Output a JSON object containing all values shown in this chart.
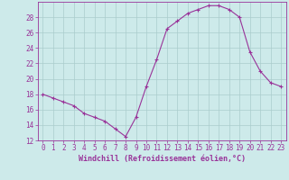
{
  "x": [
    0,
    1,
    2,
    3,
    4,
    5,
    6,
    7,
    8,
    9,
    10,
    11,
    12,
    13,
    14,
    15,
    16,
    17,
    18,
    19,
    20,
    21,
    22,
    23
  ],
  "y": [
    18.0,
    17.5,
    17.0,
    16.5,
    15.5,
    15.0,
    14.5,
    13.5,
    12.5,
    15.0,
    19.0,
    22.5,
    26.5,
    27.5,
    28.5,
    29.0,
    29.5,
    29.5,
    29.0,
    28.0,
    23.5,
    21.0,
    19.5,
    19.0
  ],
  "line_color": "#993399",
  "marker": "+",
  "marker_size": 3,
  "background_color": "#cdeaea",
  "grid_color": "#aacccc",
  "xlabel": "Windchill (Refroidissement éolien,°C)",
  "xlabel_color": "#993399",
  "tick_color": "#993399",
  "ylim": [
    12,
    30
  ],
  "xlim": [
    -0.5,
    23.5
  ],
  "yticks": [
    12,
    14,
    16,
    18,
    20,
    22,
    24,
    26,
    28
  ],
  "xticks": [
    0,
    1,
    2,
    3,
    4,
    5,
    6,
    7,
    8,
    9,
    10,
    11,
    12,
    13,
    14,
    15,
    16,
    17,
    18,
    19,
    20,
    21,
    22,
    23
  ],
  "tick_fontsize": 5.5,
  "xlabel_fontsize": 6.0
}
